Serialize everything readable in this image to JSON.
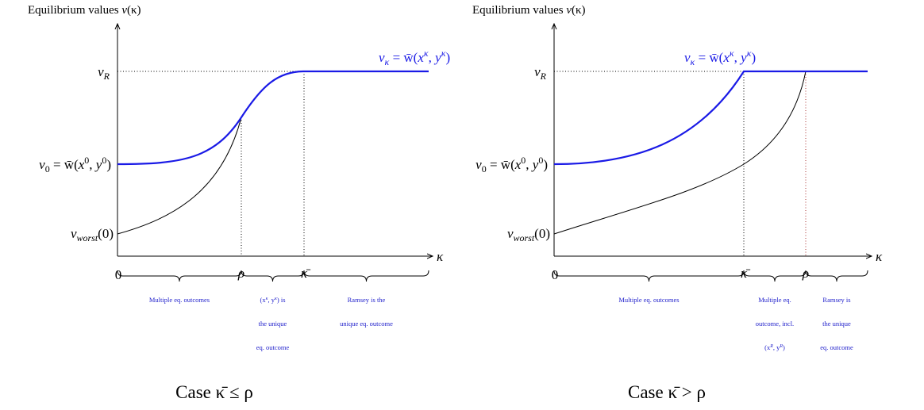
{
  "panels": [
    {
      "y_axis_label": [
        "Equilibrium values ",
        "v",
        "(κ)"
      ],
      "curve_label": [
        "v",
        "κ",
        " = w̄(",
        "x",
        "κ",
        ", ",
        "y",
        "κ",
        ")"
      ],
      "y_labels": {
        "v_R": [
          "v",
          "R"
        ],
        "v_0": [
          "v",
          "0",
          " = w̄(",
          "x",
          "0",
          ", ",
          "y",
          "0",
          ")"
        ],
        "v_worst": [
          "v",
          "worst",
          "(0)"
        ]
      },
      "x_labels": [
        "0",
        "ρ",
        "κ̄"
      ],
      "x_axis_label": "κ",
      "segments": [
        [
          [
            "Multiple eq.  outcomes"
          ]
        ],
        [
          [
            "(x",
            "κ",
            ", y",
            "κ",
            ") is"
          ],
          [
            "the unique"
          ],
          [
            "eq.  outcome"
          ]
        ],
        [
          [
            "Ramsey is the"
          ],
          [
            "unique eq.  outcome"
          ]
        ]
      ],
      "caption": "Case κ̄ ≤ ρ"
    },
    {
      "y_axis_label": [
        "Equilibrium values ",
        "v",
        "(κ)"
      ],
      "curve_label": [
        "v",
        "κ",
        " = w̄(",
        "x",
        "κ",
        ", ",
        "y",
        "κ",
        ")"
      ],
      "y_labels": {
        "v_R": [
          "v",
          "R"
        ],
        "v_0": [
          "v",
          "0",
          " = w̄(",
          "x",
          "0",
          ", ",
          "y",
          "0",
          ")"
        ],
        "v_worst": [
          "v",
          "worst",
          "(0)"
        ]
      },
      "x_labels": [
        "0",
        "κ̄",
        "ρ"
      ],
      "x_axis_label": "κ",
      "segments": [
        [
          [
            "Multiple eq.  outcomes"
          ]
        ],
        [
          [
            "Multiple eq."
          ],
          [
            "outcome, incl."
          ],
          [
            "(x",
            "R",
            ", y",
            "R",
            ")"
          ]
        ],
        [
          [
            "Ramsey is"
          ],
          [
            "the unique"
          ],
          [
            "eq.  outcome"
          ]
        ]
      ],
      "caption": "Case κ̄ > ρ"
    }
  ]
}
